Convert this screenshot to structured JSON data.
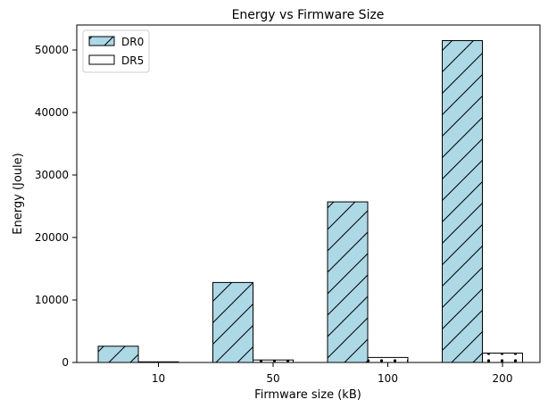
{
  "chart_data": {
    "type": "bar",
    "title": "Energy vs Firmware Size",
    "xlabel": "Firmware size (kB)",
    "ylabel": "Energy (Joule)",
    "categories": [
      "10",
      "50",
      "100",
      "200"
    ],
    "ylim": [
      0,
      54000
    ],
    "yticks": [
      0,
      10000,
      20000,
      30000,
      40000,
      50000
    ],
    "grid": false,
    "legend_position": "top-left",
    "series": [
      {
        "name": "DR0",
        "values": [
          2600,
          12800,
          25700,
          51500
        ],
        "color": "#add8e6",
        "hatch": "diagonal"
      },
      {
        "name": "DR5",
        "values": [
          100,
          400,
          800,
          1500
        ],
        "color": "#ffffff",
        "hatch": "dots"
      }
    ]
  }
}
